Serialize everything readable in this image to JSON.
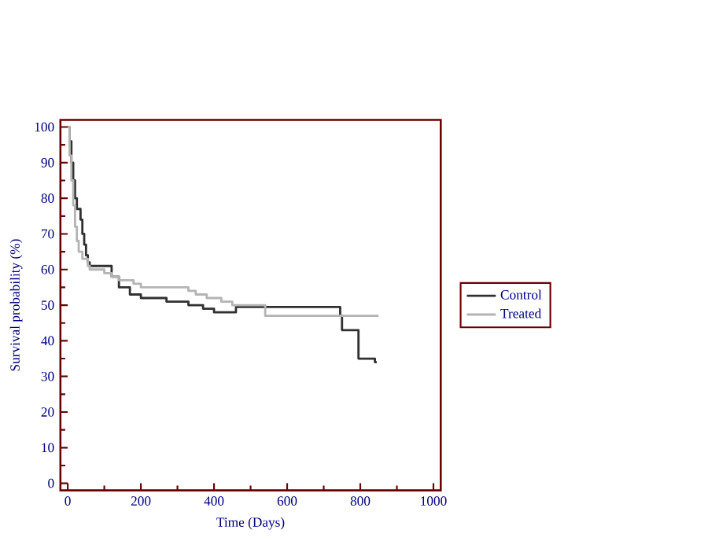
{
  "chart_data": {
    "type": "step",
    "xlabel": "Time (Days)",
    "ylabel": "Survival probability (%)",
    "xlim": [
      -20,
      1020
    ],
    "ylim": [
      -2,
      102
    ],
    "xticks": [
      0,
      200,
      400,
      600,
      800,
      1000
    ],
    "yticks": [
      0,
      10,
      20,
      30,
      40,
      50,
      60,
      70,
      80,
      90,
      100
    ],
    "legend": "right",
    "grid": false,
    "marker": "none",
    "line_style": "solid",
    "series": [
      {
        "name": "Control",
        "color": "#303030",
        "x": [
          0,
          5,
          10,
          15,
          20,
          25,
          35,
          40,
          45,
          50,
          55,
          60,
          100,
          120,
          140,
          170,
          200,
          270,
          330,
          370,
          400,
          460,
          745,
          750,
          795,
          840,
          845
        ],
        "values": [
          100,
          96,
          90,
          85,
          80,
          77,
          74,
          70,
          67,
          64,
          62,
          61,
          61,
          58,
          55,
          53,
          52,
          51,
          50,
          49,
          48,
          49.5,
          47,
          43,
          35,
          34,
          34
        ]
      },
      {
        "name": "Treated",
        "color": "#b4b4b4",
        "x": [
          0,
          5,
          10,
          15,
          20,
          25,
          30,
          40,
          55,
          60,
          100,
          120,
          140,
          180,
          200,
          280,
          330,
          350,
          380,
          420,
          450,
          540,
          850
        ],
        "values": [
          100,
          92,
          85,
          78,
          72,
          68,
          65,
          63,
          61,
          60,
          59,
          58,
          57,
          56,
          55,
          55,
          54,
          53,
          52,
          51,
          50,
          47,
          47
        ]
      }
    ]
  }
}
